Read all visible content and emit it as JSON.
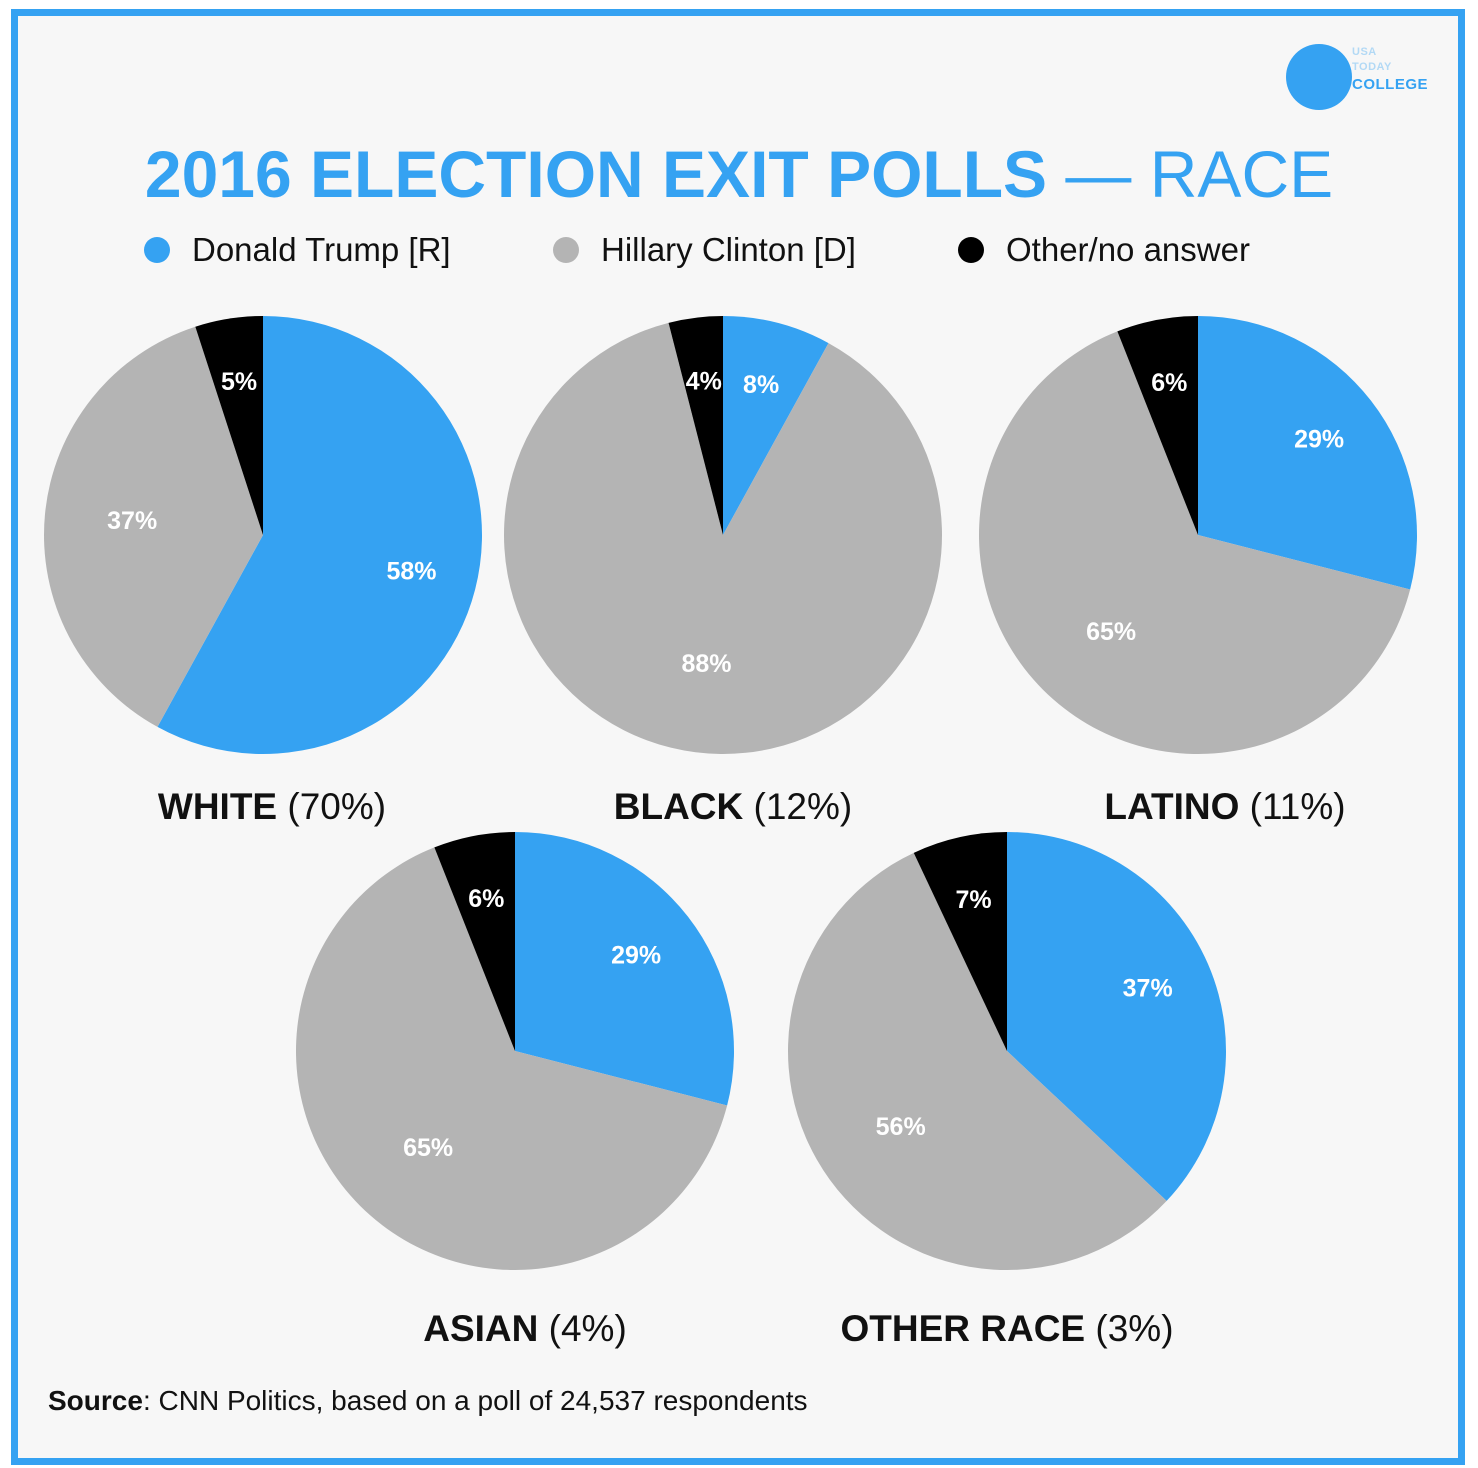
{
  "header": {
    "title_bold": "2016 ELECTION EXIT POLLS",
    "title_sep": " — ",
    "title_light": "RACE"
  },
  "logo": {
    "line1": "USA",
    "line2": "TODAY",
    "line3": "COLLEGE"
  },
  "legend": [
    {
      "label": "Donald Trump  [R]",
      "color": "#35a2f2"
    },
    {
      "label": "Hillary Clinton [D]",
      "color": "#b4b4b4"
    },
    {
      "label": "Other/no answer",
      "color": "#000000"
    }
  ],
  "colors": {
    "trump": "#35a2f2",
    "clinton": "#b4b4b4",
    "other": "#000000",
    "frame": "#35a2f2"
  },
  "chart_data": [
    {
      "type": "pie",
      "group": "WHITE",
      "share": "(70%)",
      "slices": [
        {
          "name": "Donald Trump [R]",
          "value": 58,
          "label": "58%"
        },
        {
          "name": "Hillary Clinton [D]",
          "value": 37,
          "label": "37%"
        },
        {
          "name": "Other/no answer",
          "value": 5,
          "label": "5%"
        }
      ]
    },
    {
      "type": "pie",
      "group": "BLACK",
      "share": "(12%)",
      "slices": [
        {
          "name": "Donald Trump [R]",
          "value": 8,
          "label": "8%"
        },
        {
          "name": "Hillary Clinton [D]",
          "value": 88,
          "label": "88%"
        },
        {
          "name": "Other/no answer",
          "value": 4,
          "label": "4%"
        }
      ]
    },
    {
      "type": "pie",
      "group": "LATINO",
      "share": "(11%)",
      "slices": [
        {
          "name": "Donald Trump [R]",
          "value": 29,
          "label": "29%"
        },
        {
          "name": "Hillary Clinton [D]",
          "value": 65,
          "label": "65%"
        },
        {
          "name": "Other/no answer",
          "value": 6,
          "label": "6%"
        }
      ]
    },
    {
      "type": "pie",
      "group": "ASIAN",
      "share": "(4%)",
      "slices": [
        {
          "name": "Donald Trump [R]",
          "value": 29,
          "label": "29%"
        },
        {
          "name": "Hillary Clinton [D]",
          "value": 65,
          "label": "65%"
        },
        {
          "name": "Other/no answer",
          "value": 6,
          "label": "6%"
        }
      ]
    },
    {
      "type": "pie",
      "group": "OTHER RACE",
      "share": "(3%)",
      "slices": [
        {
          "name": "Donald Trump [R]",
          "value": 37,
          "label": "37%"
        },
        {
          "name": "Hillary Clinton [D]",
          "value": 56,
          "label": "56%"
        },
        {
          "name": "Other/no answer",
          "value": 7,
          "label": "7%"
        }
      ]
    }
  ],
  "footer": {
    "source_key": "Source",
    "source_text": ": CNN Politics, based on a poll of 24,537 respondents"
  }
}
